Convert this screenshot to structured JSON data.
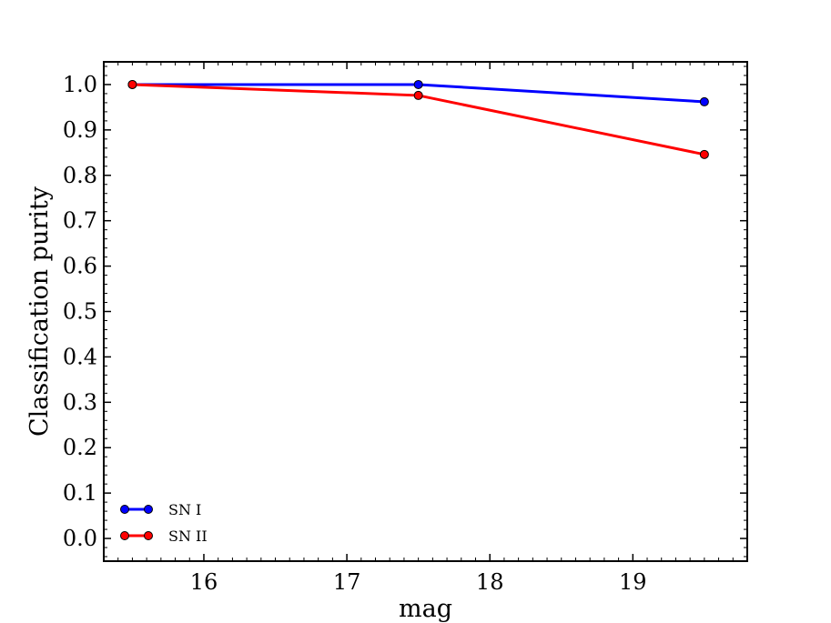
{
  "chart_data": {
    "type": "line",
    "title": "",
    "xlabel": "mag",
    "ylabel": "Classification purity",
    "xlim": [
      15.3,
      19.8
    ],
    "ylim": [
      -0.05,
      1.05
    ],
    "xticks": [
      16,
      17,
      18,
      19
    ],
    "xtick_labels": [
      "16",
      "17",
      "18",
      "19"
    ],
    "yticks": [
      0.0,
      0.1,
      0.2,
      0.3,
      0.4,
      0.5,
      0.6,
      0.7,
      0.8,
      0.9,
      1.0
    ],
    "ytick_labels": [
      "0.0",
      "0.1",
      "0.2",
      "0.3",
      "0.4",
      "0.5",
      "0.6",
      "0.7",
      "0.8",
      "0.9",
      "1.0"
    ],
    "grid": false,
    "legend_position": "lower-left",
    "series": [
      {
        "name": "SN I",
        "color": "#0000ff",
        "x": [
          15.5,
          17.5,
          19.5
        ],
        "y": [
          1.0,
          1.0,
          0.962
        ]
      },
      {
        "name": "SN II",
        "color": "#ff0000",
        "x": [
          15.5,
          17.5,
          19.5
        ],
        "y": [
          1.0,
          0.976,
          0.846
        ]
      }
    ]
  }
}
